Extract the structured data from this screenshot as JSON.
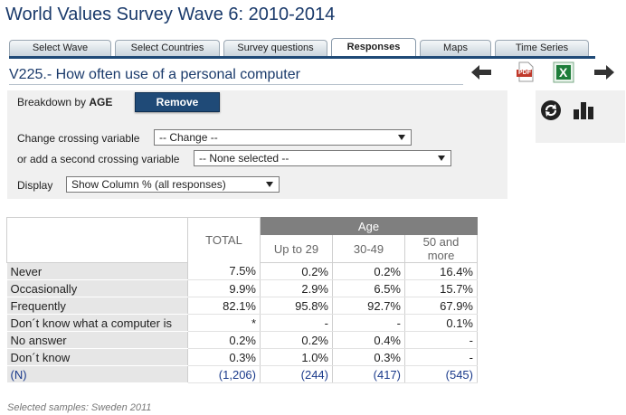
{
  "page_title": "World Values Survey Wave 6: 2010-2014",
  "tabs": [
    {
      "label": "Select Wave",
      "active": false
    },
    {
      "label": "Select Countries",
      "active": false
    },
    {
      "label": "Survey questions",
      "active": false
    },
    {
      "label": "Responses",
      "active": true
    },
    {
      "label": "Maps",
      "active": false
    },
    {
      "label": "Time Series",
      "active": false
    }
  ],
  "variable": {
    "title": "V225.- How often use of a personal computer"
  },
  "toolbar": {
    "back_icon": "arrow-left-icon",
    "pdf_icon": "pdf-icon",
    "pdf_label": "PDF",
    "excel_icon": "excel-icon",
    "excel_label": "X",
    "forward_icon": "arrow-right-icon",
    "refresh_icon": "refresh-icon",
    "chart_icon": "bar-chart-icon"
  },
  "controls": {
    "breakdown_prefix": "Breakdown by ",
    "breakdown_var": "AGE",
    "remove_label": "Remove",
    "crossing_label": "Change crossing variable",
    "crossing_value": "-- Change --",
    "second_label": "or add a second crossing variable",
    "second_value": "-- None selected --",
    "display_label": "Display",
    "display_value": "Show Column % (all responses)"
  },
  "table": {
    "total_header": "TOTAL",
    "group_header": "Age",
    "columns": [
      "Up to 29",
      "30-49",
      "50 and more"
    ],
    "rows": [
      {
        "label": "Never",
        "total": "7.5%",
        "values": [
          "0.2%",
          "0.2%",
          "16.4%"
        ]
      },
      {
        "label": "Occasionally",
        "total": "9.9%",
        "values": [
          "2.9%",
          "6.5%",
          "15.7%"
        ]
      },
      {
        "label": "Frequently",
        "total": "82.1%",
        "values": [
          "95.8%",
          "92.7%",
          "67.9%"
        ]
      },
      {
        "label": "Don´t know what a computer is",
        "total": "*",
        "values": [
          "-",
          "-",
          "0.1%"
        ]
      },
      {
        "label": "No answer",
        "total": "0.2%",
        "values": [
          "0.2%",
          "0.4%",
          "-"
        ]
      },
      {
        "label": "Don´t know",
        "total": "0.3%",
        "values": [
          "1.0%",
          "0.3%",
          "-"
        ]
      }
    ],
    "n_row": {
      "label": "(N)",
      "total": "(1,206)",
      "values": [
        "(244)",
        "(417)",
        "(545)"
      ]
    }
  },
  "footnote": "Selected samples: Sweden 2011",
  "colors": {
    "title": "#1a3a6b",
    "accent": "#1f4a77",
    "header_gray": "#7f7f7f",
    "excel_green": "#1e7d3a",
    "pdf_red": "#c0392b"
  }
}
